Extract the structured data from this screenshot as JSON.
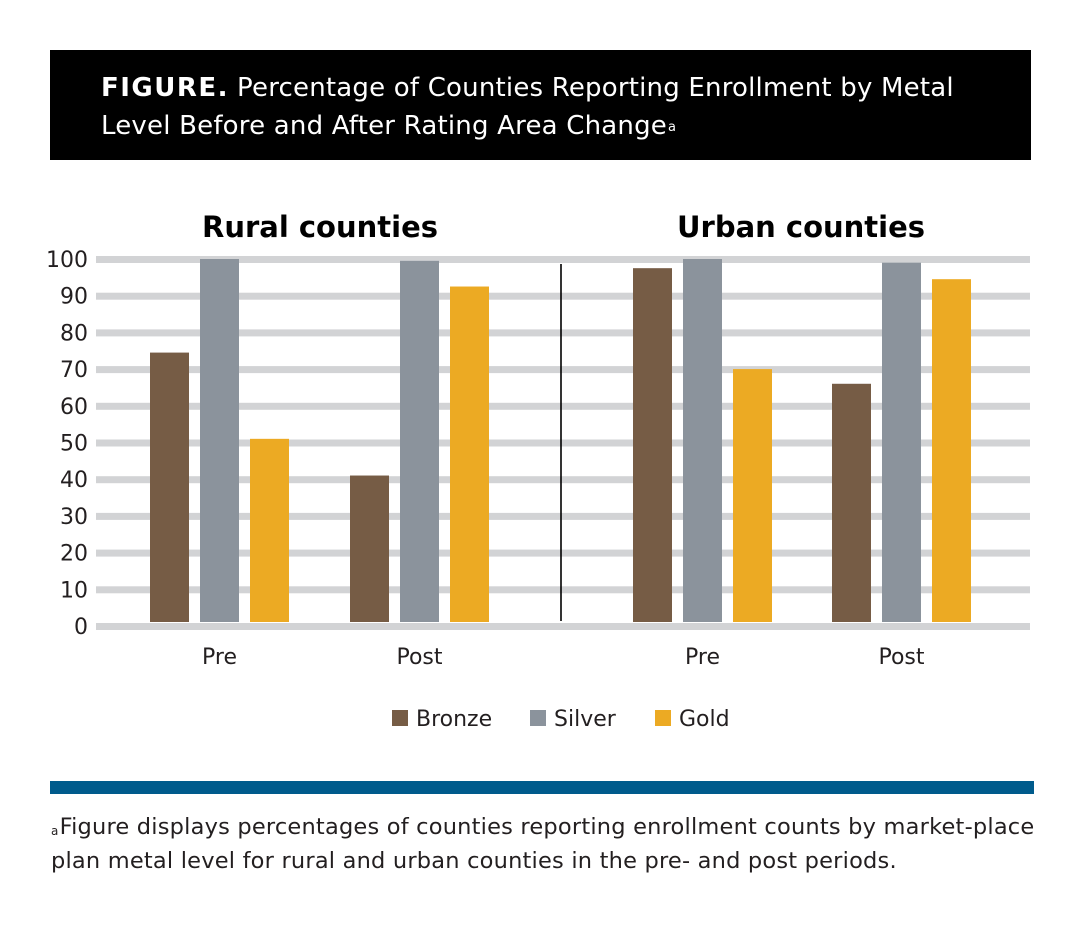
{
  "figure": {
    "tag": "FIGURE.",
    "title": "Percentage of Counties Reporting Enrollment by Metal Level Before and After Rating Area Change",
    "title_marker": "a"
  },
  "footnote": {
    "marker": "a",
    "text": "Figure displays percentages of counties reporting enrollment counts by market-place plan metal level for rural and urban counties in the pre- and post periods."
  },
  "colors": {
    "bronze": "#765c45",
    "silver": "#8b939c",
    "gold": "#ecaa23",
    "grid": "#d2d3d5",
    "accent_bar": "#005b8c"
  },
  "chart_data": [
    {
      "type": "bar",
      "title": "Rural counties",
      "categories": [
        "Pre",
        "Post"
      ],
      "series": [
        {
          "name": "Bronze",
          "values": [
            74.5,
            41
          ]
        },
        {
          "name": "Silver",
          "values": [
            100,
            99.5
          ]
        },
        {
          "name": "Gold",
          "values": [
            51,
            92.5
          ]
        }
      ],
      "ylim": [
        0,
        100
      ],
      "yticks": [
        0,
        10,
        20,
        30,
        40,
        50,
        60,
        70,
        80,
        90,
        100
      ],
      "grid": true
    },
    {
      "type": "bar",
      "title": "Urban counties",
      "categories": [
        "Pre",
        "Post"
      ],
      "series": [
        {
          "name": "Bronze",
          "values": [
            97.5,
            66
          ]
        },
        {
          "name": "Silver",
          "values": [
            100,
            99
          ]
        },
        {
          "name": "Gold",
          "values": [
            70,
            94.5
          ]
        }
      ],
      "ylim": [
        0,
        100
      ],
      "grid": true
    }
  ],
  "legend": {
    "placement": "bottom-center",
    "items": [
      {
        "label": "Bronze",
        "color": "#765c45"
      },
      {
        "label": "Silver",
        "color": "#8b939c"
      },
      {
        "label": "Gold",
        "color": "#ecaa23"
      }
    ]
  }
}
